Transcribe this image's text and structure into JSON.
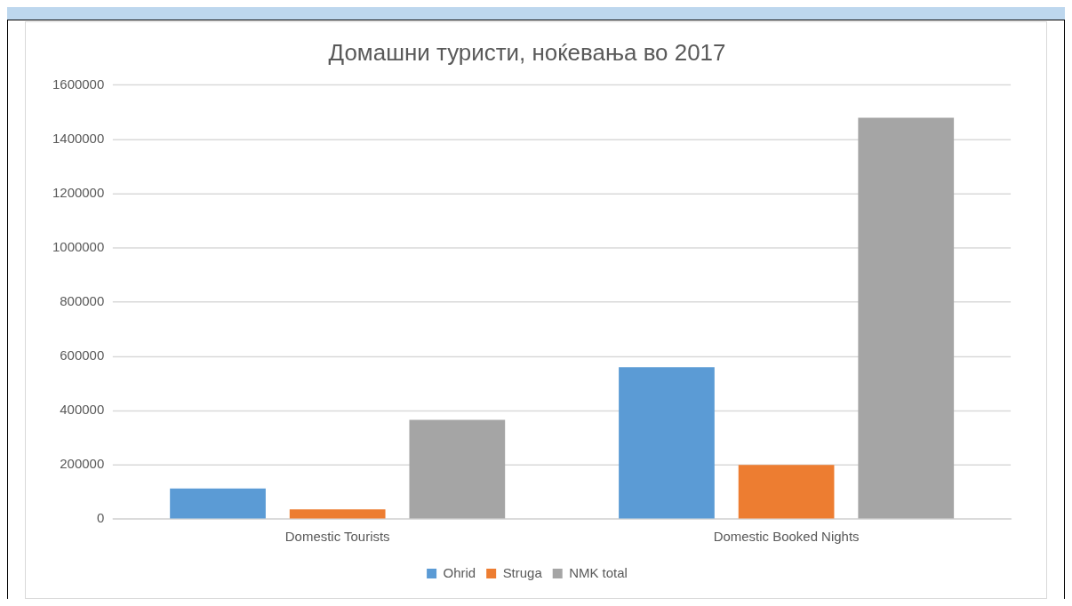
{
  "chart_data": {
    "type": "bar",
    "title": "Домашни туристи, ноќевања во 2017",
    "categories": [
      "Domestic Tourists",
      "Domestic Booked Nights"
    ],
    "series": [
      {
        "name": "Ohrid",
        "color": "#5b9bd5",
        "values": [
          113000,
          560000
        ]
      },
      {
        "name": "Struga",
        "color": "#ed7d31",
        "values": [
          36000,
          200000
        ]
      },
      {
        "name": "NMK total",
        "color": "#a5a5a5",
        "values": [
          366000,
          1480000
        ]
      }
    ],
    "ylim": [
      0,
      1600000
    ],
    "yticks": [
      0,
      200000,
      400000,
      600000,
      800000,
      1000000,
      1200000,
      1400000,
      1600000
    ],
    "grid": "y",
    "legend": "bottom"
  }
}
